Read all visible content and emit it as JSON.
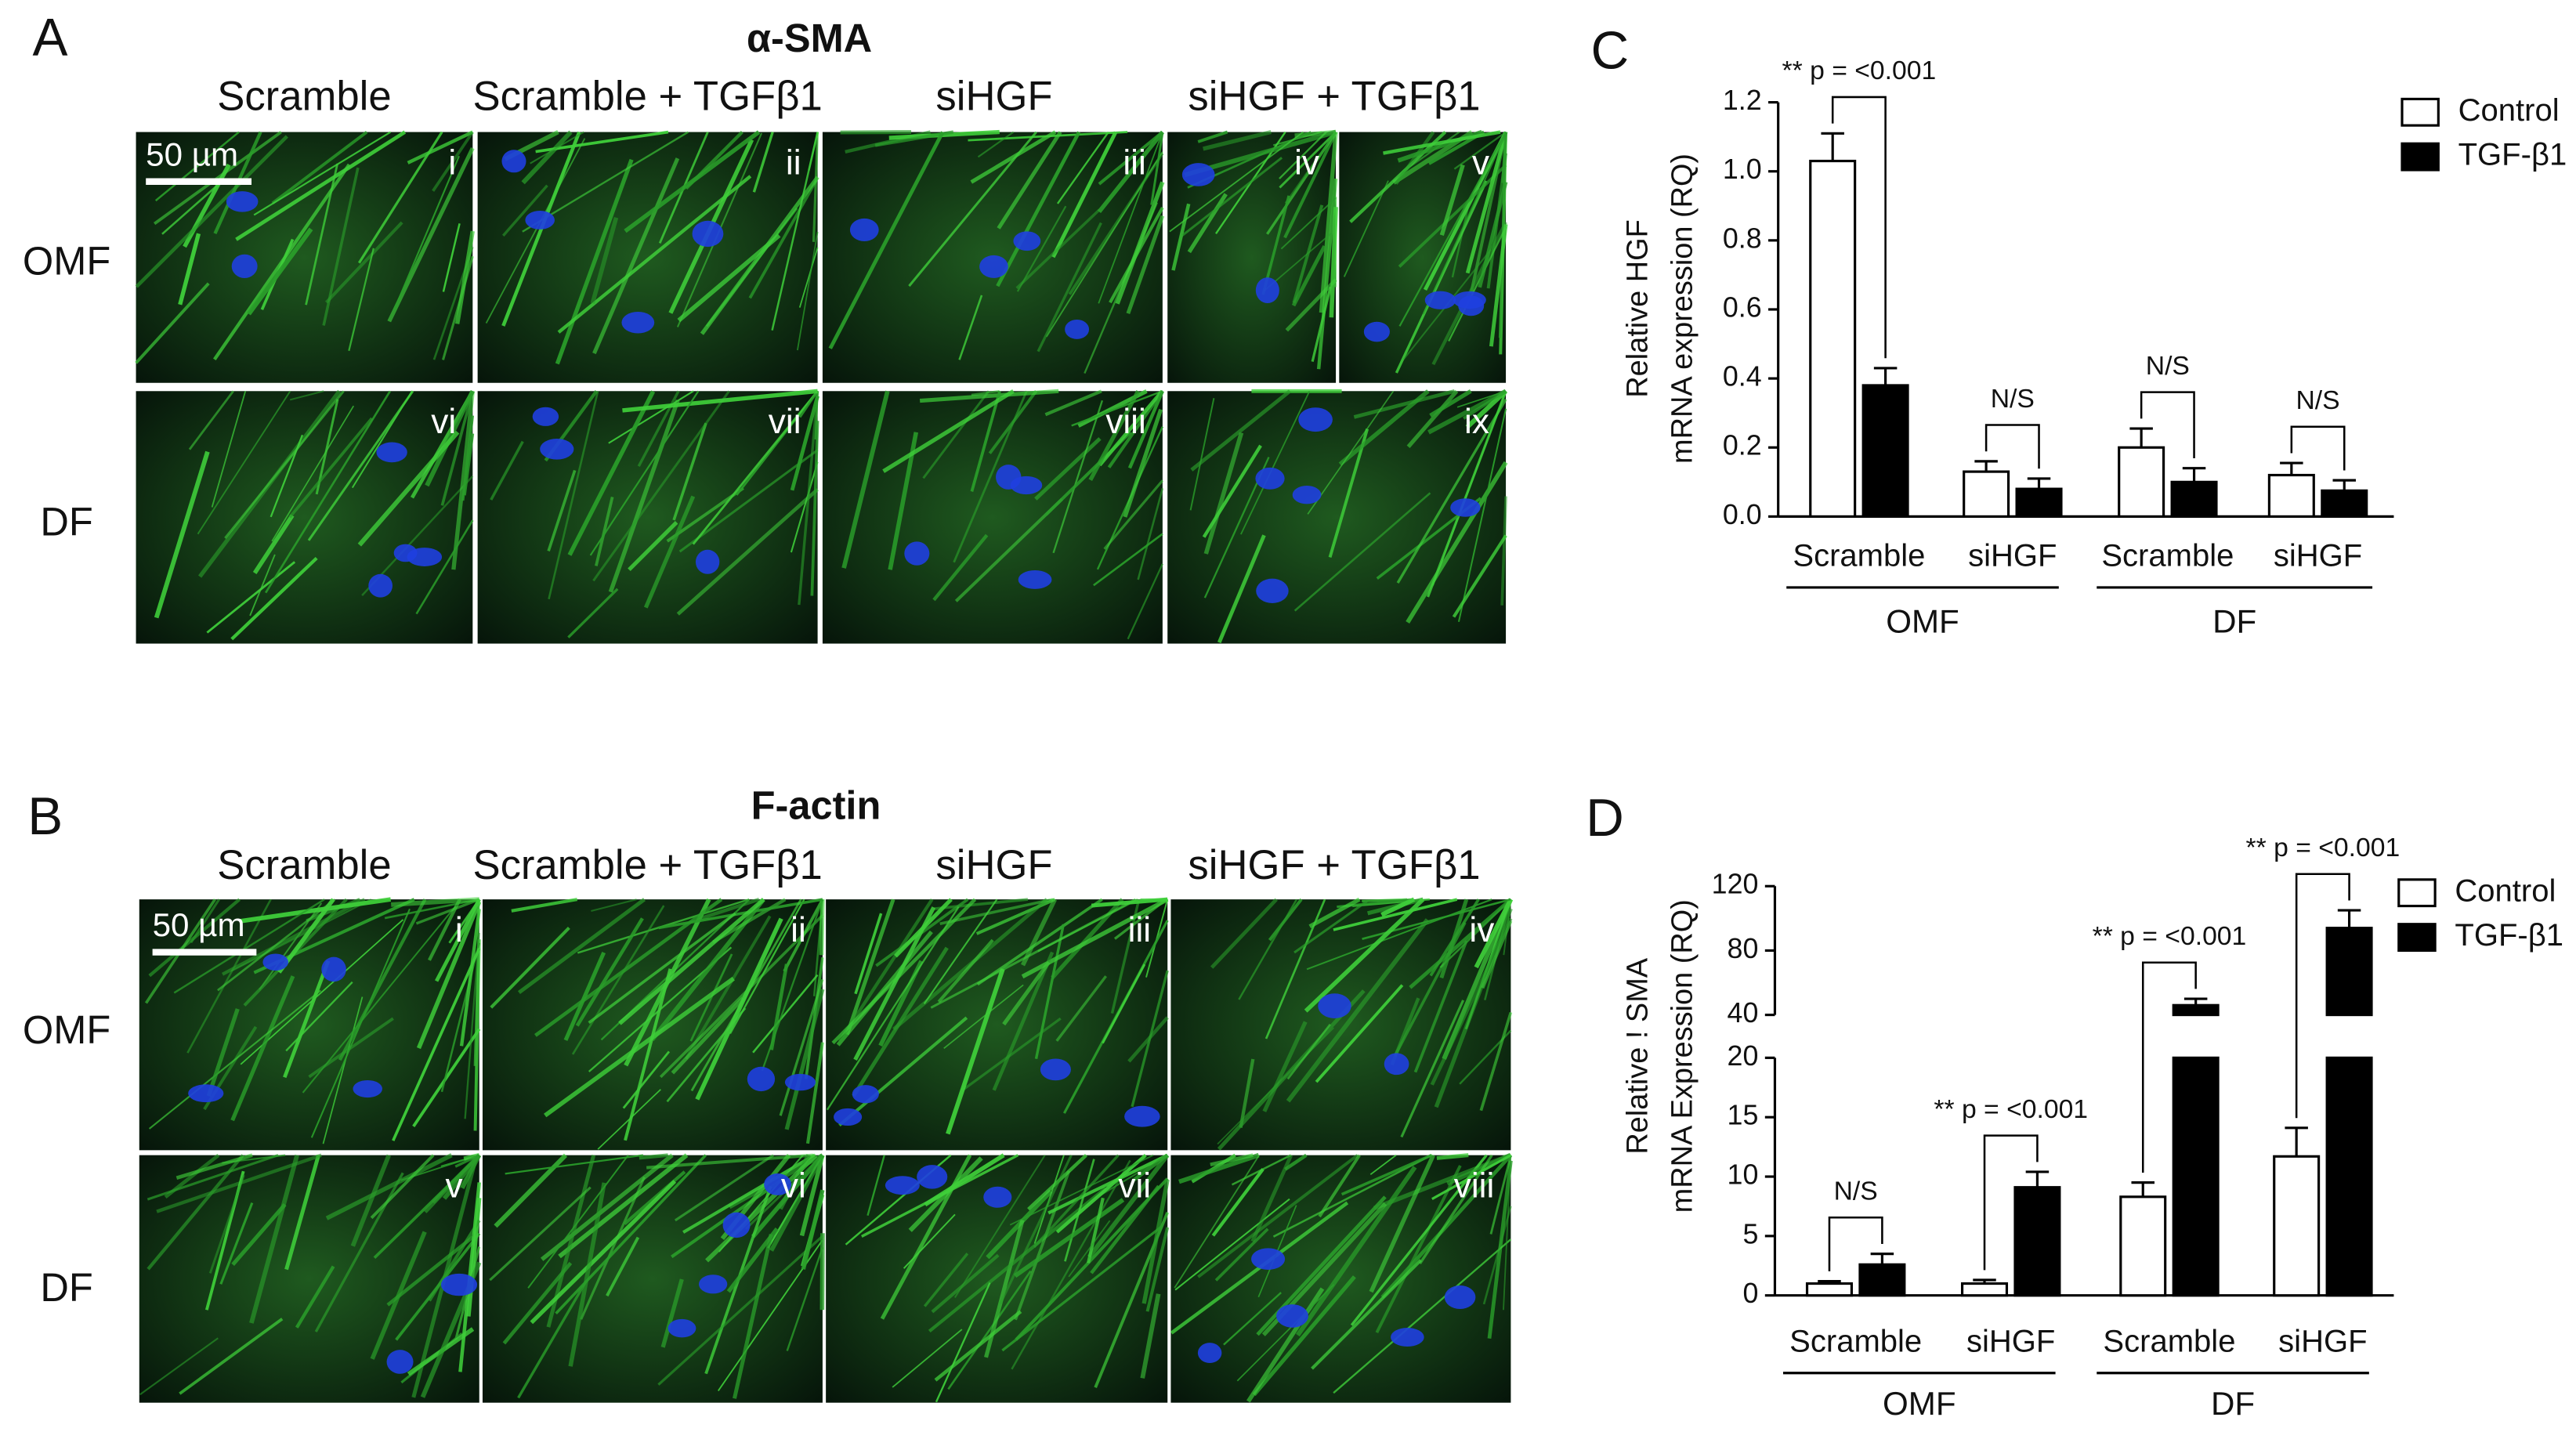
{
  "panel_labels": [
    "A",
    "B",
    "C",
    "D"
  ],
  "image_panels": [
    {
      "title": "α-SMA",
      "columns": [
        "Scramble",
        "Scramble + TGFβ1",
        "siHGF",
        "siHGF + TGFβ1"
      ],
      "rows": [
        "OMF",
        "DF"
      ],
      "scale_bar": "50 µm",
      "tiles": [
        "i",
        "ii",
        "iii",
        "iv",
        "v",
        "vi",
        "vii",
        "viii",
        "ix"
      ]
    },
    {
      "title": "F-actin",
      "columns": [
        "Scramble",
        "Scramble + TGFβ1",
        "siHGF",
        "siHGF + TGFβ1"
      ],
      "rows": [
        "OMF",
        "DF"
      ],
      "scale_bar": "50 µm",
      "tiles": [
        "i",
        "ii",
        "iii",
        "iv",
        "v",
        "vi",
        "vii",
        "viii"
      ]
    }
  ],
  "chart_data": [
    {
      "type": "bar",
      "y_label": [
        "Relative HGF",
        "mRNA expression (RQ)"
      ],
      "categories": [
        "Scramble",
        "siHGF",
        "Scramble",
        "siHGF"
      ],
      "group_labels": [
        "OMF",
        "DF"
      ],
      "ylim": [
        0,
        1.2
      ],
      "yticks": [
        {
          "value": 0,
          "label": "0.0"
        },
        0.2,
        0.4,
        0.6,
        0.8,
        {
          "value": 1,
          "label": "1.0"
        },
        1.2
      ],
      "series": [
        {
          "name": "Control",
          "color": "#ffffff",
          "values": [
            1.03,
            0.13,
            0.2,
            0.12
          ],
          "errors": [
            0.08,
            0.03,
            0.055,
            0.035
          ]
        },
        {
          "name": "TGF-β1",
          "color": "#000000",
          "values": [
            0.38,
            0.08,
            0.1,
            0.075
          ],
          "errors": [
            0.05,
            0.03,
            0.04,
            0.03
          ]
        }
      ],
      "annotations": [
        "** p = <0.001",
        "N/S",
        "N/S",
        "N/S"
      ]
    },
    {
      "type": "bar",
      "y_label": [
        "Relative ! SMA",
        "mRNA Expression (RQ)"
      ],
      "categories": [
        "Scramble",
        "siHGF",
        "Scramble",
        "siHGF"
      ],
      "group_labels": [
        "OMF",
        "DF"
      ],
      "ylim": [
        0,
        120
      ],
      "y_break": [
        20,
        40
      ],
      "yticks": [
        0,
        5,
        10,
        15,
        20,
        40,
        80,
        120
      ],
      "series": [
        {
          "name": "Control",
          "color": "#ffffff",
          "values": [
            1,
            1,
            8.3,
            11.7
          ],
          "errors": [
            0.2,
            0.3,
            1.2,
            2.4
          ]
        },
        {
          "name": "TGF-β1",
          "color": "#000000",
          "values": [
            2.6,
            9.1,
            46,
            94
          ],
          "errors": [
            0.9,
            1.3,
            4,
            11
          ]
        }
      ],
      "annotations": [
        "N/S",
        "** p = <0.001",
        "** p = <0.001",
        "** p = <0.001"
      ]
    }
  ]
}
